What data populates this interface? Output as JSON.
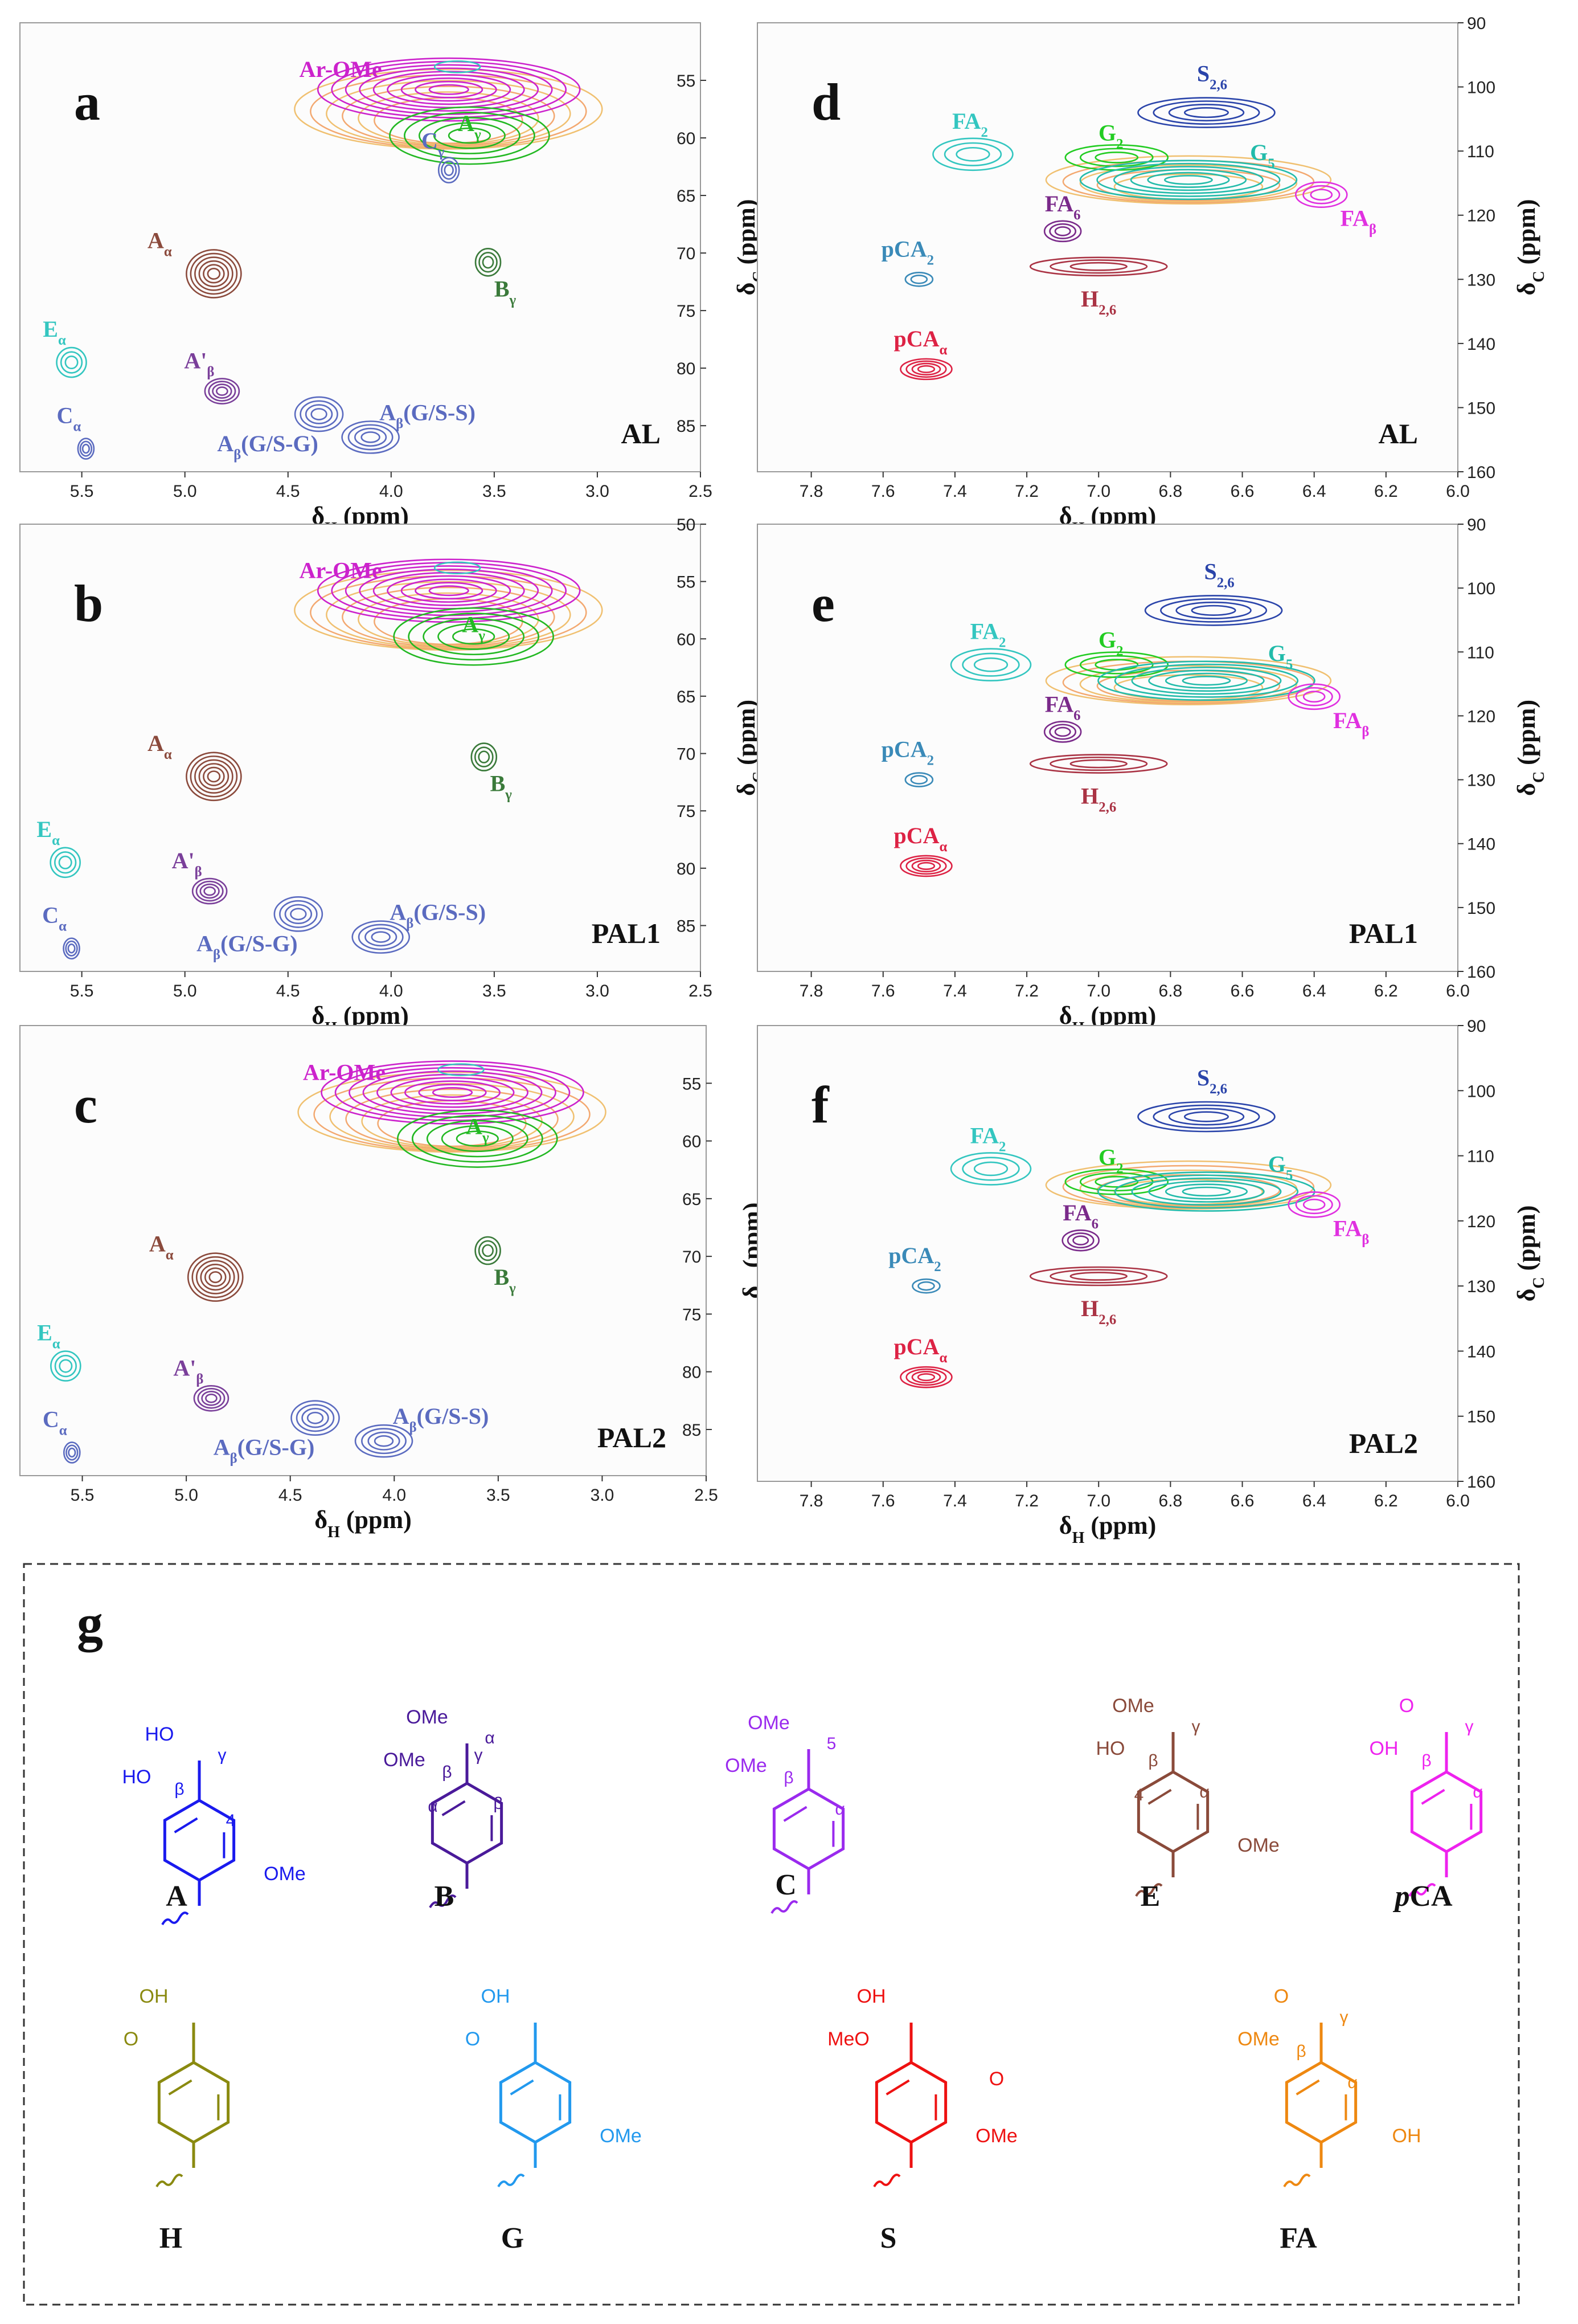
{
  "colors": {
    "text": "#111111",
    "frame": "#444444",
    "ar_ome": "#cc22cc",
    "a_gamma": "#22b822",
    "a_alpha": "#8b4a3c",
    "a_prime": "#7a3f9a",
    "a_beta": "#5b6bc0",
    "b_gamma": "#3a7a3a",
    "c": "#5b6bc0",
    "e": "#33c6c0",
    "yellow": "#f0c070",
    "orange": "#f3a870",
    "cyan": "#33c6c0",
    "s26": "#2a44aa",
    "g2": "#22cc22",
    "g5": "#22bbaa",
    "fa6": "#7a2a8a",
    "fab": "#e030e0",
    "h26": "#aa3344",
    "pca2": "#3a8ab8",
    "pcaa": "#dd2244",
    "str_A": "#1a1aee",
    "str_B": "#4a1a9a",
    "str_C": "#9a2aee",
    "str_E": "#8a4a3a",
    "str_pCA": "#ee22ee",
    "str_H": "#8a8a10",
    "str_G": "#2299ee",
    "str_S": "#ee1111",
    "str_FA": "#ee8811"
  },
  "chart_data": [
    {
      "type": "heatmap",
      "panel": "a",
      "sample_label": "AL",
      "xlabel": "δH (ppm)",
      "ylabel": "δC (ppm)",
      "xlim": [
        5.8,
        2.5
      ],
      "ylim": [
        89,
        50
      ],
      "x_ticks": [
        "5.5",
        "5.0",
        "4.5",
        "4.0",
        "3.5",
        "3.0",
        "2.5"
      ],
      "y_ticks": [
        "55",
        "60",
        "65",
        "70",
        "75",
        "80",
        "85"
      ],
      "peaks": [
        {
          "label": "Ar-OMe",
          "x": 3.72,
          "y": 55.8
        },
        {
          "label": "Aγ",
          "x": 3.62,
          "y": 59.8
        },
        {
          "label": "Cγ",
          "x": 3.72,
          "y": 62.8
        },
        {
          "label": "Aα",
          "x": 4.86,
          "y": 71.8
        },
        {
          "label": "Bγ",
          "x": 3.53,
          "y": 70.8
        },
        {
          "label": "Eα",
          "x": 5.55,
          "y": 79.5
        },
        {
          "label": "A'β",
          "x": 4.82,
          "y": 82.0
        },
        {
          "label": "Cα",
          "x": 5.48,
          "y": 87.0
        },
        {
          "label": "Aβ(G/S-G)",
          "x": 4.35,
          "y": 84.0
        },
        {
          "label": "Aβ(G/S-S)",
          "x": 4.1,
          "y": 86.0
        }
      ]
    },
    {
      "type": "heatmap",
      "panel": "b",
      "sample_label": "PAL1",
      "xlabel": "δH (ppm)",
      "ylabel": "δC (ppm)",
      "xlim": [
        5.8,
        2.5
      ],
      "ylim": [
        89,
        50
      ],
      "x_ticks": [
        "5.5",
        "5.0",
        "4.5",
        "4.0",
        "3.5",
        "3.0",
        "2.5"
      ],
      "y_ticks": [
        "50",
        "55",
        "60",
        "65",
        "70",
        "75",
        "80",
        "85"
      ],
      "peaks": [
        {
          "label": "Ar-OMe",
          "x": 3.72,
          "y": 55.8
        },
        {
          "label": "Aγ",
          "x": 3.6,
          "y": 59.8
        },
        {
          "label": "Aα",
          "x": 4.86,
          "y": 72.0
        },
        {
          "label": "Bγ",
          "x": 3.55,
          "y": 70.3
        },
        {
          "label": "Eα",
          "x": 5.58,
          "y": 79.5
        },
        {
          "label": "A'β",
          "x": 4.88,
          "y": 82.0
        },
        {
          "label": "Cα",
          "x": 5.55,
          "y": 87.0
        },
        {
          "label": "Aβ(G/S-G)",
          "x": 4.45,
          "y": 84.0
        },
        {
          "label": "Aβ(G/S-S)",
          "x": 4.05,
          "y": 86.0
        }
      ]
    },
    {
      "type": "heatmap",
      "panel": "c",
      "sample_label": "PAL2",
      "xlabel": "δH (ppm)",
      "ylabel": "δC (ppm)",
      "xlim": [
        5.8,
        2.5
      ],
      "ylim": [
        89,
        50
      ],
      "x_ticks": [
        "5.5",
        "5.0",
        "4.5",
        "4.0",
        "3.5",
        "3.0",
        "2.5"
      ],
      "y_ticks": [
        "55",
        "60",
        "65",
        "70",
        "75",
        "80",
        "85"
      ],
      "peaks": [
        {
          "label": "Ar-OMe",
          "x": 3.72,
          "y": 55.8
        },
        {
          "label": "Aγ",
          "x": 3.6,
          "y": 59.8
        },
        {
          "label": "Aα",
          "x": 4.86,
          "y": 71.8
        },
        {
          "label": "Bγ",
          "x": 3.55,
          "y": 69.5
        },
        {
          "label": "Eα",
          "x": 5.58,
          "y": 79.5
        },
        {
          "label": "A'β",
          "x": 4.88,
          "y": 82.3
        },
        {
          "label": "Cα",
          "x": 5.55,
          "y": 87.0
        },
        {
          "label": "Aβ(G/S-G)",
          "x": 4.38,
          "y": 84.0
        },
        {
          "label": "Aβ(G/S-S)",
          "x": 4.05,
          "y": 86.0
        }
      ]
    },
    {
      "type": "heatmap",
      "panel": "d",
      "sample_label": "AL",
      "xlabel": "δH (ppm)",
      "ylabel": "δC (ppm)",
      "xlim": [
        7.95,
        6.0
      ],
      "ylim": [
        160,
        90
      ],
      "x_ticks": [
        "7.8",
        "7.6",
        "7.4",
        "7.2",
        "7.0",
        "6.8",
        "6.6",
        "6.4",
        "6.2",
        "6.0"
      ],
      "y_ticks": [
        "90",
        "100",
        "110",
        "120",
        "130",
        "140",
        "150",
        "160"
      ],
      "peaks": [
        {
          "label": "S2,6",
          "x": 6.7,
          "y": 104.0
        },
        {
          "label": "FA2",
          "x": 7.35,
          "y": 110.5
        },
        {
          "label": "G2",
          "x": 6.95,
          "y": 111.0
        },
        {
          "label": "G5",
          "x": 6.75,
          "y": 114.5
        },
        {
          "label": "FAβ",
          "x": 6.38,
          "y": 116.8
        },
        {
          "label": "FA6",
          "x": 7.1,
          "y": 122.5
        },
        {
          "label": "pCA2",
          "x": 7.5,
          "y": 130.0
        },
        {
          "label": "H2,6",
          "x": 7.0,
          "y": 128.0
        },
        {
          "label": "pCAα",
          "x": 7.48,
          "y": 144.0
        }
      ]
    },
    {
      "type": "heatmap",
      "panel": "e",
      "sample_label": "PAL1",
      "xlabel": "δH (ppm)",
      "ylabel": "δC (ppm)",
      "xlim": [
        7.95,
        6.0
      ],
      "ylim": [
        160,
        90
      ],
      "x_ticks": [
        "7.8",
        "7.6",
        "7.4",
        "7.2",
        "7.0",
        "6.8",
        "6.6",
        "6.4",
        "6.2",
        "6.0"
      ],
      "y_ticks": [
        "90",
        "100",
        "110",
        "120",
        "130",
        "140",
        "150",
        "160"
      ],
      "peaks": [
        {
          "label": "S2,6",
          "x": 6.68,
          "y": 103.5
        },
        {
          "label": "FA2",
          "x": 7.3,
          "y": 112.0
        },
        {
          "label": "G2",
          "x": 6.95,
          "y": 112.0
        },
        {
          "label": "G5",
          "x": 6.7,
          "y": 114.5
        },
        {
          "label": "FAβ",
          "x": 6.4,
          "y": 117.0
        },
        {
          "label": "FA6",
          "x": 7.1,
          "y": 122.5
        },
        {
          "label": "pCA2",
          "x": 7.5,
          "y": 130.0
        },
        {
          "label": "H2,6",
          "x": 7.0,
          "y": 127.5
        },
        {
          "label": "pCAα",
          "x": 7.48,
          "y": 143.5
        }
      ]
    },
    {
      "type": "heatmap",
      "panel": "f",
      "sample_label": "PAL2",
      "xlabel": "δH (ppm)",
      "ylabel": "δC (ppm)",
      "xlim": [
        7.95,
        6.0
      ],
      "ylim": [
        160,
        90
      ],
      "x_ticks": [
        "7.8",
        "7.6",
        "7.4",
        "7.2",
        "7.0",
        "6.8",
        "6.6",
        "6.4",
        "6.2",
        "6.0"
      ],
      "y_ticks": [
        "90",
        "100",
        "110",
        "120",
        "130",
        "140",
        "150",
        "160"
      ],
      "peaks": [
        {
          "label": "S2,6",
          "x": 6.7,
          "y": 104.0
        },
        {
          "label": "FA2",
          "x": 7.3,
          "y": 112.0
        },
        {
          "label": "G2",
          "x": 6.95,
          "y": 114.0
        },
        {
          "label": "G5",
          "x": 6.7,
          "y": 115.5
        },
        {
          "label": "FAβ",
          "x": 6.4,
          "y": 117.5
        },
        {
          "label": "FA6",
          "x": 7.05,
          "y": 123.0
        },
        {
          "label": "pCA2",
          "x": 7.48,
          "y": 130.0
        },
        {
          "label": "H2,6",
          "x": 7.0,
          "y": 128.5
        },
        {
          "label": "pCAα",
          "x": 7.48,
          "y": 144.0
        }
      ]
    }
  ],
  "structures": {
    "panel": "g",
    "items": [
      {
        "key": "A",
        "name": "A",
        "subs": [
          "HO",
          "HO",
          "OMe"
        ],
        "locants": [
          "γ",
          "β",
          "4"
        ]
      },
      {
        "key": "B",
        "name": "B",
        "subs": [
          "OMe",
          "OMe"
        ],
        "locants": [
          "α",
          "β",
          "β",
          "α",
          "γ"
        ]
      },
      {
        "key": "C",
        "name": "C",
        "subs": [
          "OMe",
          "OMe"
        ],
        "locants": [
          "5",
          "β",
          "α"
        ]
      },
      {
        "key": "E",
        "name": "E",
        "subs": [
          "OMe",
          "HO",
          "OMe"
        ],
        "locants": [
          "γ",
          "β",
          "α",
          "4"
        ]
      },
      {
        "key": "pCA",
        "name": "pCA",
        "subs": [
          "O",
          "OH"
        ],
        "locants": [
          "γ",
          "β",
          "α"
        ]
      },
      {
        "key": "H",
        "name": "H",
        "subs": [
          "OH",
          "O"
        ],
        "locants": []
      },
      {
        "key": "G",
        "name": "G",
        "subs": [
          "OH",
          "O",
          "OMe"
        ],
        "locants": []
      },
      {
        "key": "S",
        "name": "S",
        "subs": [
          "OH",
          "MeO",
          "OMe",
          "O"
        ],
        "locants": []
      },
      {
        "key": "FA",
        "name": "FA",
        "subs": [
          "O",
          "OMe",
          "OH"
        ],
        "locants": [
          "γ",
          "β",
          "α"
        ]
      }
    ]
  }
}
